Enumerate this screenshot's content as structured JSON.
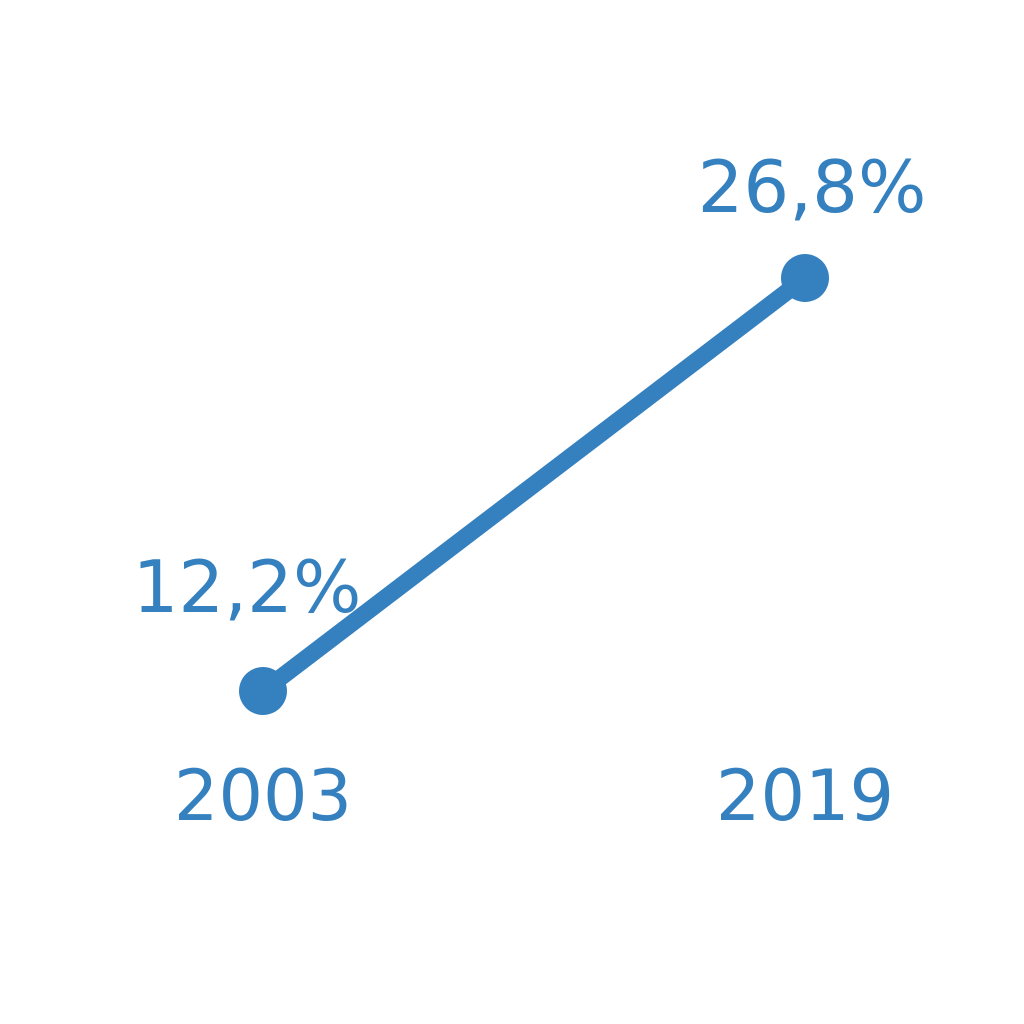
{
  "chart_data": {
    "type": "line",
    "categories": [
      "2003",
      "2019"
    ],
    "series": [
      {
        "values": [
          12.2,
          26.8
        ],
        "labels": [
          "12,2%",
          "26,8%"
        ]
      }
    ],
    "unit": "%",
    "title": "",
    "xlabel": "",
    "ylabel": "",
    "grid": false,
    "legend": "none"
  },
  "colors": {
    "series": "#3580bf",
    "background": "#ffffff"
  }
}
